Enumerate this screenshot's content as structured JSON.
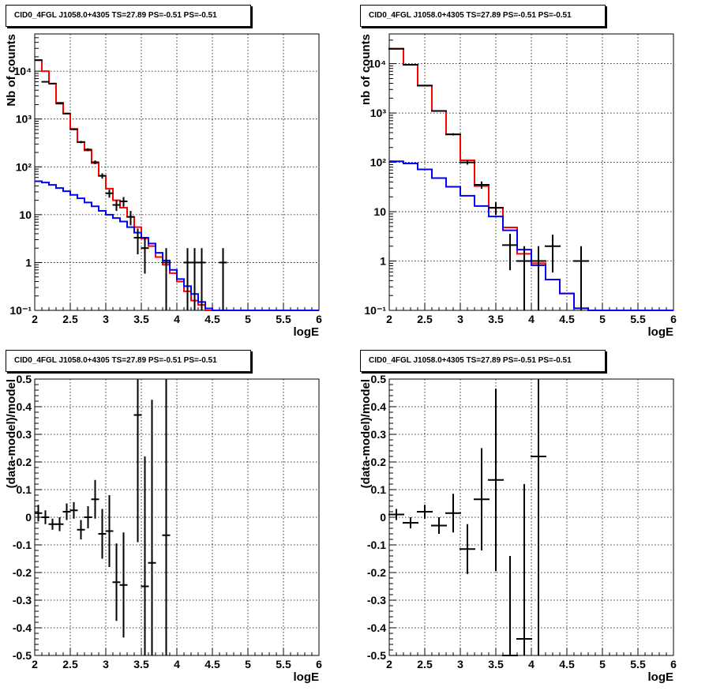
{
  "chart_data": [
    {
      "type": "histogram",
      "title": "CID0_4FGL J1058.0+4305 TS=27.89 PS=-0.51 PS=-0.51",
      "xlabel": "logE",
      "ylabel": "Nb of counts",
      "xlim": [
        2,
        6
      ],
      "ylim": [
        0.1,
        60000
      ],
      "yscale": "log",
      "grid": true,
      "x_ticks": [
        "2",
        "2.5",
        "3",
        "3.5",
        "4",
        "4.5",
        "5",
        "5.5",
        "6"
      ],
      "y_ticks": [
        "10⁻¹",
        "1",
        "10",
        "10²",
        "10³",
        "10⁴"
      ],
      "bin_edges": [
        2.0,
        2.1,
        2.2,
        2.3,
        2.4,
        2.5,
        2.6,
        2.7,
        2.8,
        2.9,
        3.0,
        3.1,
        3.2,
        3.3,
        3.4,
        3.5,
        3.6,
        3.7,
        3.8,
        3.9,
        4.0,
        4.1,
        4.2,
        4.3,
        4.4,
        4.5,
        4.6,
        4.7,
        4.8,
        4.9,
        5.0,
        5.1,
        5.2,
        5.3,
        5.4,
        5.5,
        5.6,
        5.7,
        5.8,
        5.9,
        6.0
      ],
      "series": [
        {
          "color": "#ff0000",
          "values": [
            17000,
            10000,
            5500,
            2200,
            1300,
            620,
            330,
            220,
            120,
            65,
            35,
            20,
            14,
            9,
            5.5,
            3.2,
            2.2,
            1.3,
            0.9,
            0.6,
            0.4,
            0.25,
            0.16,
            0.13,
            0.1,
            0.1,
            0.1,
            0.1,
            0.1,
            0.1,
            0.1,
            0.1,
            0.1,
            0.1,
            0.1,
            0.1,
            0.1,
            0.1,
            0.1,
            0.1
          ]
        },
        {
          "color": "#0000ff",
          "values": [
            50,
            47,
            42,
            36,
            31,
            26,
            22,
            18,
            15,
            12,
            10,
            8.5,
            7.2,
            5.5,
            4.2,
            3.3,
            2.5,
            1.6,
            1.1,
            0.7,
            0.45,
            0.32,
            0.22,
            0.15,
            0.11,
            0.1,
            0.1,
            0.1,
            0.1,
            0.1,
            0.1,
            0.1,
            0.1,
            0.1,
            0.1,
            0.1,
            0.1,
            0.1,
            0.1,
            0.1
          ]
        }
      ],
      "points": [
        {
          "x": 2.05,
          "y": 17000
        },
        {
          "x": 2.15,
          "y": 6000
        },
        {
          "x": 2.25,
          "y": 5500
        },
        {
          "x": 2.35,
          "y": 2100
        },
        {
          "x": 2.45,
          "y": 1300
        },
        {
          "x": 2.55,
          "y": 610
        },
        {
          "x": 2.65,
          "y": 330
        },
        {
          "x": 2.75,
          "y": 230
        },
        {
          "x": 2.85,
          "y": 125
        },
        {
          "x": 2.95,
          "y": 65
        },
        {
          "x": 3.05,
          "y": 28
        },
        {
          "x": 3.15,
          "y": 16
        },
        {
          "x": 3.25,
          "y": 19
        },
        {
          "x": 3.35,
          "y": 9
        },
        {
          "x": 3.45,
          "y": 3.3
        },
        {
          "x": 3.55,
          "y": 2.0
        },
        {
          "x": 3.85,
          "y": 1
        },
        {
          "x": 4.15,
          "y": 1
        },
        {
          "x": 4.25,
          "y": 1
        },
        {
          "x": 4.35,
          "y": 1
        },
        {
          "x": 4.65,
          "y": 1
        }
      ]
    },
    {
      "type": "histogram",
      "title": "CID0_4FGL J1058.0+4305 TS=27.89 PS=-0.51 PS=-0.51",
      "xlabel": "logE",
      "ylabel": "nb of counts",
      "xlim": [
        2,
        6
      ],
      "ylim": [
        0.1,
        40000
      ],
      "yscale": "log",
      "grid": true,
      "x_ticks": [
        "2",
        "2.5",
        "3",
        "3.5",
        "4",
        "4.5",
        "5",
        "5.5",
        "6"
      ],
      "y_ticks": [
        "10⁻¹",
        "1",
        "10",
        "10²",
        "10³",
        "10⁴"
      ],
      "bin_edges": [
        2.0,
        2.2,
        2.4,
        2.6,
        2.8,
        3.0,
        3.2,
        3.4,
        3.6,
        3.8,
        4.0,
        4.2,
        4.4,
        4.6,
        4.8,
        5.0,
        5.2,
        5.4,
        5.6,
        5.8,
        6.0
      ],
      "series": [
        {
          "color": "#ff0000",
          "values": [
            20000,
            9500,
            3600,
            1100,
            370,
            110,
            33,
            12,
            4.8,
            1.4,
            0.9,
            0.42,
            0.22,
            0.11,
            0.1,
            0.1,
            0.1,
            0.1,
            0.1,
            0.1
          ]
        },
        {
          "color": "#0000ff",
          "values": [
            105,
            95,
            72,
            48,
            32,
            21,
            13,
            8,
            4.2,
            1.7,
            0.82,
            0.42,
            0.22,
            0.11,
            0.1,
            0.1,
            0.1,
            0.1,
            0.1,
            0.1
          ]
        }
      ],
      "points": [
        {
          "x": 2.1,
          "y": 20000
        },
        {
          "x": 2.3,
          "y": 9500
        },
        {
          "x": 2.5,
          "y": 3600
        },
        {
          "x": 2.7,
          "y": 1100
        },
        {
          "x": 2.9,
          "y": 370
        },
        {
          "x": 3.1,
          "y": 100
        },
        {
          "x": 3.3,
          "y": 35
        },
        {
          "x": 3.5,
          "y": 12
        },
        {
          "x": 3.7,
          "y": 2.1
        },
        {
          "x": 3.9,
          "y": 1
        },
        {
          "x": 4.1,
          "y": 1
        },
        {
          "x": 4.3,
          "y": 2
        },
        {
          "x": 4.7,
          "y": 1
        }
      ]
    },
    {
      "type": "scatter",
      "title": "CID0_4FGL J1058.0+4305 TS=27.89 PS=-0.51 PS=-0.51",
      "xlabel": "logE",
      "ylabel": "(data-model)/model",
      "xlim": [
        2,
        6
      ],
      "ylim": [
        -0.5,
        0.5
      ],
      "grid": true,
      "x_ticks": [
        "2",
        "2.5",
        "3",
        "3.5",
        "4",
        "4.5",
        "5",
        "5.5",
        "6"
      ],
      "y_ticks": [
        "-0.5",
        "-0.4",
        "-0.3",
        "-0.2",
        "-0.1",
        "0",
        "0.1",
        "0.2",
        "0.3",
        "0.4",
        "0.5"
      ],
      "points": [
        {
          "x": 2.05,
          "y": 0.015,
          "err": 0.03
        },
        {
          "x": 2.15,
          "y": 0.0,
          "err": 0.025
        },
        {
          "x": 2.25,
          "y": -0.025,
          "err": 0.02
        },
        {
          "x": 2.35,
          "y": -0.025,
          "err": 0.025
        },
        {
          "x": 2.45,
          "y": 0.02,
          "err": 0.03
        },
        {
          "x": 2.55,
          "y": 0.025,
          "err": 0.03
        },
        {
          "x": 2.65,
          "y": -0.045,
          "err": 0.035
        },
        {
          "x": 2.75,
          "y": 0.0,
          "err": 0.04
        },
        {
          "x": 2.85,
          "y": 0.065,
          "err": 0.07
        },
        {
          "x": 2.95,
          "y": -0.06,
          "err": 0.09
        },
        {
          "x": 3.05,
          "y": -0.05,
          "err": 0.13
        },
        {
          "x": 3.15,
          "y": -0.235,
          "err": 0.14
        },
        {
          "x": 3.25,
          "y": -0.245,
          "err": 0.19
        },
        {
          "x": 3.45,
          "y": 0.37,
          "err": 0.46
        },
        {
          "x": 3.55,
          "y": -0.25,
          "err": 0.47
        },
        {
          "x": 3.65,
          "y": -0.165,
          "err": 0.59
        },
        {
          "x": 3.85,
          "y": -0.065,
          "err": 1.0
        }
      ]
    },
    {
      "type": "scatter",
      "title": "CID0_4FGL J1058.0+4305 TS=27.89 PS=-0.51 PS=-0.51",
      "xlabel": "logE",
      "ylabel": "(data-model)/model",
      "xlim": [
        2,
        6
      ],
      "ylim": [
        -0.5,
        0.5
      ],
      "grid": true,
      "x_ticks": [
        "2",
        "2.5",
        "3",
        "3.5",
        "4",
        "4.5",
        "5",
        "5.5",
        "6"
      ],
      "y_ticks": [
        "-0.5",
        "-0.4",
        "-0.3",
        "-0.2",
        "-0.1",
        "0",
        "0.1",
        "0.2",
        "0.3",
        "0.4",
        "0.5"
      ],
      "points": [
        {
          "x": 2.1,
          "y": 0.01,
          "err": 0.02
        },
        {
          "x": 2.3,
          "y": -0.02,
          "err": 0.02
        },
        {
          "x": 2.5,
          "y": 0.02,
          "err": 0.025
        },
        {
          "x": 2.7,
          "y": -0.03,
          "err": 0.03
        },
        {
          "x": 2.9,
          "y": 0.015,
          "err": 0.07
        },
        {
          "x": 3.1,
          "y": -0.115,
          "err": 0.09
        },
        {
          "x": 3.3,
          "y": 0.065,
          "err": 0.185
        },
        {
          "x": 3.5,
          "y": 0.135,
          "err": 0.33
        },
        {
          "x": 3.7,
          "y": -0.5,
          "err": 0.36
        },
        {
          "x": 3.9,
          "y": -0.44,
          "err": 0.56
        },
        {
          "x": 4.1,
          "y": 0.22,
          "err": 0.8
        }
      ]
    }
  ]
}
